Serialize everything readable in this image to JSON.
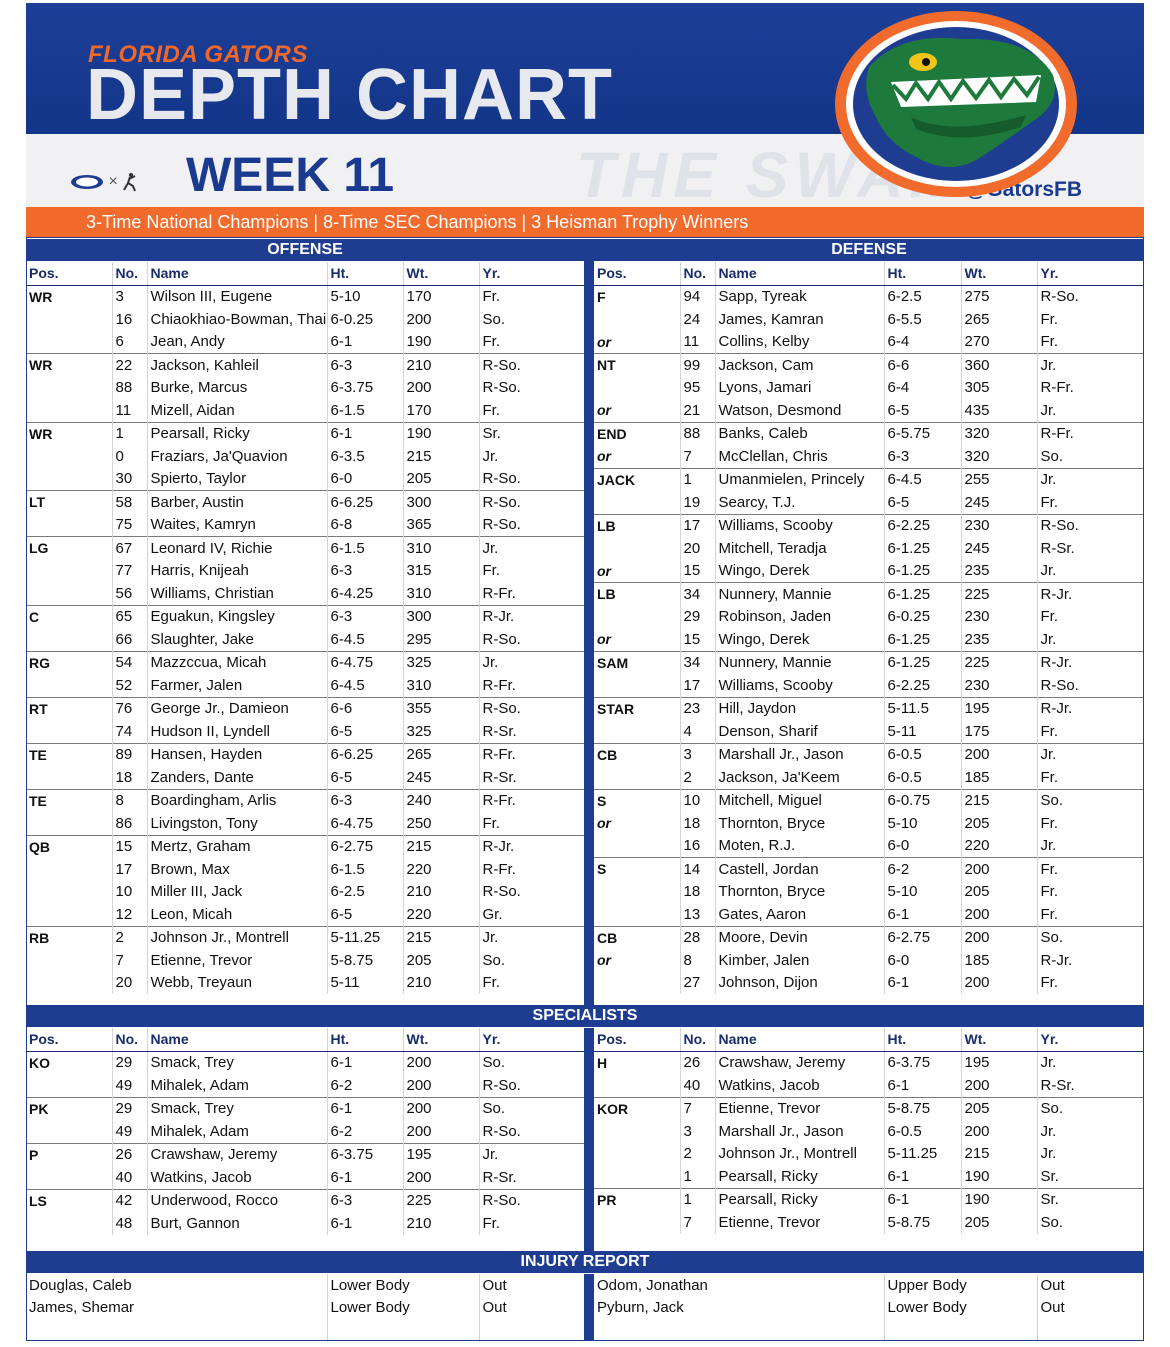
{
  "header": {
    "subtitle": "FLORIDA GATORS",
    "title": "DEPTH CHART",
    "week": "WEEK 11",
    "handle": "@GatorsFB",
    "watermark": "THE SWAMP",
    "brand_separator": "×",
    "tagline": "3-Time National Champions  |  8-Time SEC Champions  |  3 Heisman Trophy Winners",
    "colors": {
      "blue": "#1e3d91",
      "orange": "#f06b2c",
      "green": "#1e7a3c"
    }
  },
  "columns": [
    "Pos.",
    "No.",
    "Name",
    "Ht.",
    "Wt.",
    "Yr."
  ],
  "offense": {
    "title": "OFFENSE",
    "groups": [
      {
        "pos": "WR",
        "rows": [
          [
            "",
            "3",
            "Wilson III, Eugene",
            "5-10",
            "170",
            "Fr."
          ],
          [
            "",
            "16",
            "Chiaokhiao-Bowman, Thai",
            "6-0.25",
            "200",
            "So."
          ],
          [
            "",
            "6",
            "Jean, Andy",
            "6-1",
            "190",
            "Fr."
          ]
        ]
      },
      {
        "pos": "WR",
        "rows": [
          [
            "",
            "22",
            "Jackson, Kahleil",
            "6-3",
            "210",
            "R-So."
          ],
          [
            "",
            "88",
            "Burke, Marcus",
            "6-3.75",
            "200",
            "R-So."
          ],
          [
            "",
            "11",
            "Mizell, Aidan",
            "6-1.5",
            "170",
            "Fr."
          ]
        ]
      },
      {
        "pos": "WR",
        "rows": [
          [
            "",
            "1",
            "Pearsall, Ricky",
            "6-1",
            "190",
            "Sr."
          ],
          [
            "",
            "0",
            "Fraziars, Ja'Quavion",
            "6-3.5",
            "215",
            "Jr."
          ],
          [
            "",
            "30",
            "Spierto, Taylor",
            "6-0",
            "205",
            "R-So."
          ]
        ]
      },
      {
        "pos": "LT",
        "rows": [
          [
            "",
            "58",
            "Barber, Austin",
            "6-6.25",
            "300",
            "R-So."
          ],
          [
            "",
            "75",
            "Waites, Kamryn",
            "6-8",
            "365",
            "R-So."
          ]
        ]
      },
      {
        "pos": "LG",
        "rows": [
          [
            "",
            "67",
            "Leonard IV, Richie",
            "6-1.5",
            "310",
            "Jr."
          ],
          [
            "",
            "77",
            "Harris, Knijeah",
            "6-3",
            "315",
            "Fr."
          ],
          [
            "",
            "56",
            "Williams, Christian",
            "6-4.25",
            "310",
            "R-Fr."
          ]
        ]
      },
      {
        "pos": "C",
        "rows": [
          [
            "",
            "65",
            "Eguakun, Kingsley",
            "6-3",
            "300",
            "R-Jr."
          ],
          [
            "",
            "66",
            "Slaughter, Jake",
            "6-4.5",
            "295",
            "R-So."
          ]
        ]
      },
      {
        "pos": "RG",
        "rows": [
          [
            "",
            "54",
            "Mazzccua, Micah",
            "6-4.75",
            "325",
            "Jr."
          ],
          [
            "",
            "52",
            "Farmer, Jalen",
            "6-4.5",
            "310",
            "R-Fr."
          ]
        ]
      },
      {
        "pos": "RT",
        "rows": [
          [
            "",
            "76",
            "George Jr., Damieon",
            "6-6",
            "355",
            "R-So."
          ],
          [
            "",
            "74",
            "Hudson II, Lyndell",
            "6-5",
            "325",
            "R-Sr."
          ]
        ]
      },
      {
        "pos": "TE",
        "rows": [
          [
            "",
            "89",
            "Hansen, Hayden",
            "6-6.25",
            "265",
            "R-Fr."
          ],
          [
            "",
            "18",
            "Zanders, Dante",
            "6-5",
            "245",
            "R-Sr."
          ]
        ]
      },
      {
        "pos": "TE",
        "rows": [
          [
            "",
            "8",
            "Boardingham, Arlis",
            "6-3",
            "240",
            "R-Fr."
          ],
          [
            "",
            "86",
            "Livingston, Tony",
            "6-4.75",
            "250",
            "Fr."
          ]
        ]
      },
      {
        "pos": "QB",
        "rows": [
          [
            "",
            "15",
            "Mertz, Graham",
            "6-2.75",
            "215",
            "R-Jr."
          ],
          [
            "",
            "17",
            "Brown, Max",
            "6-1.5",
            "220",
            "R-Fr."
          ],
          [
            "",
            "10",
            "Miller III, Jack",
            "6-2.5",
            "210",
            "R-So."
          ],
          [
            "",
            "12",
            "Leon, Micah",
            "6-5",
            "220",
            "Gr."
          ]
        ]
      },
      {
        "pos": "RB",
        "rows": [
          [
            "",
            "2",
            "Johnson Jr., Montrell",
            "5-11.25",
            "215",
            "Jr."
          ],
          [
            "",
            "7",
            "Etienne, Trevor",
            "5-8.75",
            "205",
            "So."
          ],
          [
            "",
            "20",
            "Webb, Treyaun",
            "5-11",
            "210",
            "Fr."
          ]
        ]
      }
    ]
  },
  "defense": {
    "title": "DEFENSE",
    "groups": [
      {
        "pos": "F",
        "rows": [
          [
            "",
            "94",
            "Sapp, Tyreak",
            "6-2.5",
            "275",
            "R-So."
          ],
          [
            "",
            "24",
            "James, Kamran",
            "6-5.5",
            "265",
            "Fr."
          ],
          [
            "or",
            "11",
            "Collins, Kelby",
            "6-4",
            "270",
            "Fr."
          ]
        ]
      },
      {
        "pos": "NT",
        "rows": [
          [
            "",
            "99",
            "Jackson, Cam",
            "6-6",
            "360",
            "Jr."
          ],
          [
            "",
            "95",
            "Lyons, Jamari",
            "6-4",
            "305",
            "R-Fr."
          ],
          [
            "or",
            "21",
            "Watson, Desmond",
            "6-5",
            "435",
            "Jr."
          ]
        ]
      },
      {
        "pos": "END",
        "rows": [
          [
            "",
            "88",
            "Banks, Caleb",
            "6-5.75",
            "320",
            "R-Fr."
          ],
          [
            "or",
            "7",
            "McClellan, Chris",
            "6-3",
            "320",
            "So."
          ]
        ]
      },
      {
        "pos": "JACK",
        "rows": [
          [
            "",
            "1",
            "Umanmielen, Princely",
            "6-4.5",
            "255",
            "Jr."
          ],
          [
            "",
            "19",
            "Searcy, T.J.",
            "6-5",
            "245",
            "Fr."
          ]
        ]
      },
      {
        "pos": "LB",
        "rows": [
          [
            "",
            "17",
            "Williams, Scooby",
            "6-2.25",
            "230",
            "R-So."
          ],
          [
            "",
            "20",
            "Mitchell, Teradja",
            "6-1.25",
            "245",
            "R-Sr."
          ],
          [
            "or",
            "15",
            "Wingo, Derek",
            "6-1.25",
            "235",
            "Jr."
          ]
        ]
      },
      {
        "pos": "LB",
        "rows": [
          [
            "",
            "34",
            "Nunnery, Mannie",
            "6-1.25",
            "225",
            "R-Jr."
          ],
          [
            "",
            "29",
            "Robinson, Jaden",
            "6-0.25",
            "230",
            "Fr."
          ],
          [
            "or",
            "15",
            "Wingo, Derek",
            "6-1.25",
            "235",
            "Jr."
          ]
        ]
      },
      {
        "pos": "SAM",
        "rows": [
          [
            "",
            "34",
            "Nunnery, Mannie",
            "6-1.25",
            "225",
            "R-Jr."
          ],
          [
            "",
            "17",
            "Williams, Scooby",
            "6-2.25",
            "230",
            "R-So."
          ]
        ]
      },
      {
        "pos": "STAR",
        "rows": [
          [
            "",
            "23",
            "Hill, Jaydon",
            "5-11.5",
            "195",
            "R-Jr."
          ],
          [
            "",
            "4",
            "Denson, Sharif",
            "5-11",
            "175",
            "Fr."
          ]
        ]
      },
      {
        "pos": "CB",
        "rows": [
          [
            "",
            "3",
            "Marshall Jr., Jason",
            "6-0.5",
            "200",
            "Jr."
          ],
          [
            "",
            "2",
            "Jackson, Ja'Keem",
            "6-0.5",
            "185",
            "Fr."
          ]
        ]
      },
      {
        "pos": "S",
        "rows": [
          [
            "",
            "10",
            "Mitchell, Miguel",
            "6-0.75",
            "215",
            "So."
          ],
          [
            "or",
            "18",
            "Thornton, Bryce",
            "5-10",
            "205",
            "Fr."
          ],
          [
            "",
            "16",
            "Moten, R.J.",
            "6-0",
            "220",
            "Jr."
          ]
        ]
      },
      {
        "pos": "S",
        "rows": [
          [
            "",
            "14",
            "Castell, Jordan",
            "6-2",
            "200",
            "Fr."
          ],
          [
            "",
            "18",
            "Thornton, Bryce",
            "5-10",
            "205",
            "Fr."
          ],
          [
            "",
            "13",
            "Gates, Aaron",
            "6-1",
            "200",
            "Fr."
          ]
        ]
      },
      {
        "pos": "CB",
        "rows": [
          [
            "",
            "28",
            "Moore, Devin",
            "6-2.75",
            "200",
            "So."
          ],
          [
            "or",
            "8",
            "Kimber, Jalen",
            "6-0",
            "185",
            "R-Jr."
          ],
          [
            "",
            "27",
            "Johnson, Dijon",
            "6-1",
            "200",
            "Fr."
          ]
        ]
      }
    ]
  },
  "specialists": {
    "title": "SPECIALISTS",
    "left": [
      {
        "pos": "KO",
        "rows": [
          [
            "",
            "29",
            "Smack, Trey",
            "6-1",
            "200",
            "So."
          ],
          [
            "",
            "49",
            "Mihalek, Adam",
            "6-2",
            "200",
            "R-So."
          ]
        ]
      },
      {
        "pos": "PK",
        "rows": [
          [
            "",
            "29",
            "Smack, Trey",
            "6-1",
            "200",
            "So."
          ],
          [
            "",
            "49",
            "Mihalek, Adam",
            "6-2",
            "200",
            "R-So."
          ]
        ]
      },
      {
        "pos": "P",
        "rows": [
          [
            "",
            "26",
            "Crawshaw, Jeremy",
            "6-3.75",
            "195",
            "Jr."
          ],
          [
            "",
            "40",
            "Watkins, Jacob",
            "6-1",
            "200",
            "R-Sr."
          ]
        ]
      },
      {
        "pos": "LS",
        "rows": [
          [
            "",
            "42",
            "Underwood, Rocco",
            "6-3",
            "225",
            "R-So."
          ],
          [
            "",
            "48",
            "Burt, Gannon",
            "6-1",
            "210",
            "Fr."
          ]
        ]
      }
    ],
    "right": [
      {
        "pos": "H",
        "rows": [
          [
            "",
            "26",
            "Crawshaw, Jeremy",
            "6-3.75",
            "195",
            "Jr."
          ],
          [
            "",
            "40",
            "Watkins, Jacob",
            "6-1",
            "200",
            "R-Sr."
          ]
        ]
      },
      {
        "pos": "KOR",
        "rows": [
          [
            "",
            "7",
            "Etienne, Trevor",
            "5-8.75",
            "205",
            "So."
          ],
          [
            "",
            "3",
            "Marshall Jr., Jason",
            "6-0.5",
            "200",
            "Jr."
          ],
          [
            "",
            "2",
            "Johnson Jr., Montrell",
            "5-11.25",
            "215",
            "Jr."
          ],
          [
            "",
            "1",
            "Pearsall, Ricky",
            "6-1",
            "190",
            "Sr."
          ]
        ]
      },
      {
        "pos": "PR",
        "rows": [
          [
            "",
            "1",
            "Pearsall, Ricky",
            "6-1",
            "190",
            "Sr."
          ],
          [
            "",
            "7",
            "Etienne, Trevor",
            "5-8.75",
            "205",
            "So."
          ]
        ]
      }
    ]
  },
  "injury": {
    "title": "INJURY REPORT",
    "left": [
      [
        "Douglas, Caleb",
        "Lower Body",
        "Out"
      ],
      [
        "James, Shemar",
        "Lower Body",
        "Out"
      ]
    ],
    "right": [
      [
        "Odom, Jonathan",
        "Upper Body",
        "Out"
      ],
      [
        "Pyburn, Jack",
        "Lower Body",
        "Out"
      ]
    ]
  }
}
